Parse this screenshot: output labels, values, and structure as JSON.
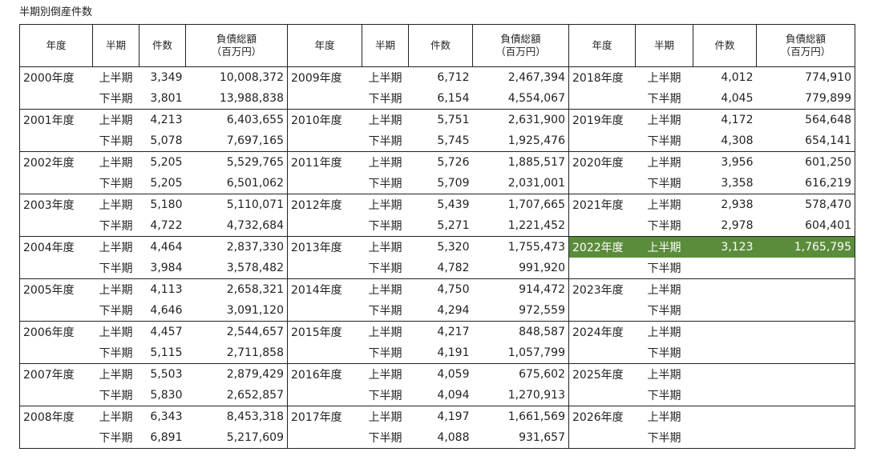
{
  "title": "半期別倒産件数",
  "headers": {
    "year": "年度",
    "half": "半期",
    "count": "件数",
    "debt": "負債総額",
    "debt_unit": "（百万円）"
  },
  "highlight_color": "#5b8c3c",
  "blocks": [
    [
      {
        "year": "2000年度",
        "rows": [
          {
            "half": "上半期",
            "count": "3,349",
            "debt": "10,008,372"
          },
          {
            "half": "下半期",
            "count": "3,801",
            "debt": "13,988,838"
          }
        ]
      },
      {
        "year": "2009年度",
        "rows": [
          {
            "half": "上半期",
            "count": "6,712",
            "debt": "2,467,394"
          },
          {
            "half": "下半期",
            "count": "6,154",
            "debt": "4,554,067"
          }
        ]
      },
      {
        "year": "2018年度",
        "rows": [
          {
            "half": "上半期",
            "count": "4,012",
            "debt": "774,910"
          },
          {
            "half": "下半期",
            "count": "4,045",
            "debt": "779,899"
          }
        ]
      }
    ],
    [
      {
        "year": "2001年度",
        "rows": [
          {
            "half": "上半期",
            "count": "4,213",
            "debt": "6,403,655"
          },
          {
            "half": "下半期",
            "count": "5,078",
            "debt": "7,697,165"
          }
        ]
      },
      {
        "year": "2010年度",
        "rows": [
          {
            "half": "上半期",
            "count": "5,751",
            "debt": "2,631,900"
          },
          {
            "half": "下半期",
            "count": "5,745",
            "debt": "1,925,476"
          }
        ]
      },
      {
        "year": "2019年度",
        "rows": [
          {
            "half": "上半期",
            "count": "4,172",
            "debt": "564,648"
          },
          {
            "half": "下半期",
            "count": "4,308",
            "debt": "654,141"
          }
        ]
      }
    ],
    [
      {
        "year": "2002年度",
        "rows": [
          {
            "half": "上半期",
            "count": "5,205",
            "debt": "5,529,765"
          },
          {
            "half": "下半期",
            "count": "5,205",
            "debt": "6,501,062"
          }
        ]
      },
      {
        "year": "2011年度",
        "rows": [
          {
            "half": "上半期",
            "count": "5,726",
            "debt": "1,885,517"
          },
          {
            "half": "下半期",
            "count": "5,709",
            "debt": "2,031,001"
          }
        ]
      },
      {
        "year": "2020年度",
        "rows": [
          {
            "half": "上半期",
            "count": "3,956",
            "debt": "601,250"
          },
          {
            "half": "下半期",
            "count": "3,358",
            "debt": "616,219"
          }
        ]
      }
    ],
    [
      {
        "year": "2003年度",
        "rows": [
          {
            "half": "上半期",
            "count": "5,180",
            "debt": "5,110,071"
          },
          {
            "half": "下半期",
            "count": "4,722",
            "debt": "4,732,684"
          }
        ]
      },
      {
        "year": "2012年度",
        "rows": [
          {
            "half": "上半期",
            "count": "5,439",
            "debt": "1,707,665"
          },
          {
            "half": "下半期",
            "count": "5,271",
            "debt": "1,221,452"
          }
        ]
      },
      {
        "year": "2021年度",
        "rows": [
          {
            "half": "上半期",
            "count": "2,938",
            "debt": "578,470"
          },
          {
            "half": "下半期",
            "count": "2,978",
            "debt": "604,401"
          }
        ]
      }
    ],
    [
      {
        "year": "2004年度",
        "rows": [
          {
            "half": "上半期",
            "count": "4,464",
            "debt": "2,837,330"
          },
          {
            "half": "下半期",
            "count": "3,984",
            "debt": "3,578,482"
          }
        ]
      },
      {
        "year": "2013年度",
        "rows": [
          {
            "half": "上半期",
            "count": "5,320",
            "debt": "1,755,473"
          },
          {
            "half": "下半期",
            "count": "4,782",
            "debt": "991,920"
          }
        ]
      },
      {
        "year": "2022年度",
        "highlight_first": true,
        "rows": [
          {
            "half": "上半期",
            "count": "3,123",
            "debt": "1,765,795"
          },
          {
            "half": "下半期",
            "count": "",
            "debt": ""
          }
        ]
      }
    ],
    [
      {
        "year": "2005年度",
        "rows": [
          {
            "half": "上半期",
            "count": "4,113",
            "debt": "2,658,321"
          },
          {
            "half": "下半期",
            "count": "4,646",
            "debt": "3,091,120"
          }
        ]
      },
      {
        "year": "2014年度",
        "rows": [
          {
            "half": "上半期",
            "count": "4,750",
            "debt": "914,472"
          },
          {
            "half": "下半期",
            "count": "4,294",
            "debt": "972,559"
          }
        ]
      },
      {
        "year": "2023年度",
        "rows": [
          {
            "half": "上半期",
            "count": "",
            "debt": ""
          },
          {
            "half": "下半期",
            "count": "",
            "debt": ""
          }
        ]
      }
    ],
    [
      {
        "year": "2006年度",
        "rows": [
          {
            "half": "上半期",
            "count": "4,457",
            "debt": "2,544,657"
          },
          {
            "half": "下半期",
            "count": "5,115",
            "debt": "2,711,858"
          }
        ]
      },
      {
        "year": "2015年度",
        "rows": [
          {
            "half": "上半期",
            "count": "4,217",
            "debt": "848,587"
          },
          {
            "half": "下半期",
            "count": "4,191",
            "debt": "1,057,799"
          }
        ]
      },
      {
        "year": "2024年度",
        "rows": [
          {
            "half": "上半期",
            "count": "",
            "debt": ""
          },
          {
            "half": "下半期",
            "count": "",
            "debt": ""
          }
        ]
      }
    ],
    [
      {
        "year": "2007年度",
        "rows": [
          {
            "half": "上半期",
            "count": "5,503",
            "debt": "2,879,429"
          },
          {
            "half": "下半期",
            "count": "5,830",
            "debt": "2,652,857"
          }
        ]
      },
      {
        "year": "2016年度",
        "rows": [
          {
            "half": "上半期",
            "count": "4,059",
            "debt": "675,602"
          },
          {
            "half": "下半期",
            "count": "4,094",
            "debt": "1,270,913"
          }
        ]
      },
      {
        "year": "2025年度",
        "rows": [
          {
            "half": "上半期",
            "count": "",
            "debt": ""
          },
          {
            "half": "下半期",
            "count": "",
            "debt": ""
          }
        ]
      }
    ],
    [
      {
        "year": "2008年度",
        "rows": [
          {
            "half": "上半期",
            "count": "6,343",
            "debt": "8,453,318"
          },
          {
            "half": "下半期",
            "count": "6,891",
            "debt": "5,217,609"
          }
        ]
      },
      {
        "year": "2017年度",
        "rows": [
          {
            "half": "上半期",
            "count": "4,197",
            "debt": "1,661,569"
          },
          {
            "half": "下半期",
            "count": "4,088",
            "debt": "931,657"
          }
        ]
      },
      {
        "year": "2026年度",
        "rows": [
          {
            "half": "上半期",
            "count": "",
            "debt": ""
          },
          {
            "half": "下半期",
            "count": "",
            "debt": ""
          }
        ]
      }
    ]
  ]
}
